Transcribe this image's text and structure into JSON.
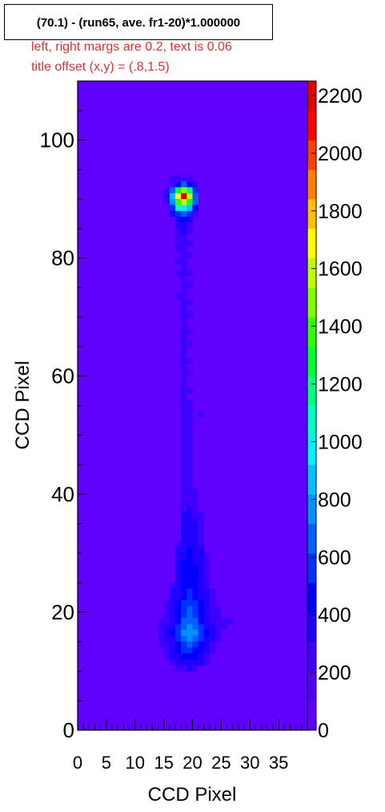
{
  "title": "(70.1) - (run65, ave. fr1-20)*1.000000",
  "annotations": [
    "left, right margs are 0.2, text is 0.06",
    "title offset (x,y) = (.8,1.5)"
  ],
  "chart_data": {
    "type": "heatmap",
    "title": "(70.1) - (run65, ave. fr1-20)*1.000000",
    "xlabel": "CCD Pixel",
    "ylabel": "CCD Pixel",
    "xlim": [
      0,
      40
    ],
    "ylim": [
      0,
      110
    ],
    "x_ticks": [
      0,
      5,
      10,
      15,
      20,
      25,
      30,
      35
    ],
    "y_ticks": [
      0,
      20,
      40,
      60,
      80,
      100
    ],
    "z_range": [
      0,
      2250
    ],
    "z_ticks": [
      0,
      200,
      400,
      600,
      800,
      1000,
      1200,
      1400,
      1600,
      1800,
      2000,
      2200
    ],
    "background_value": 100,
    "palette": [
      "#6000ff",
      "#5000ff",
      "#4000ff",
      "#2000ff",
      "#0000ff",
      "#0030ff",
      "#0060ff",
      "#0090ff",
      "#00c0ff",
      "#00f0ff",
      "#00ffc0",
      "#00ff80",
      "#00ff30",
      "#30ff00",
      "#80ff00",
      "#c0ff00",
      "#ffff00",
      "#ffc000",
      "#ff8000",
      "#ff4000",
      "#ff0000",
      "#e00000"
    ],
    "cells": [
      [
        16,
        93,
        250
      ],
      [
        17,
        93,
        250
      ],
      [
        18,
        93,
        300
      ],
      [
        19,
        93,
        250
      ],
      [
        16,
        92,
        300
      ],
      [
        17,
        92,
        500
      ],
      [
        18,
        92,
        650
      ],
      [
        19,
        92,
        500
      ],
      [
        20,
        92,
        300
      ],
      [
        15,
        91,
        300
      ],
      [
        16,
        91,
        700
      ],
      [
        17,
        91,
        1300
      ],
      [
        18,
        91,
        1500
      ],
      [
        19,
        91,
        1200
      ],
      [
        20,
        91,
        600
      ],
      [
        15,
        90,
        350
      ],
      [
        16,
        90,
        900
      ],
      [
        17,
        90,
        1700
      ],
      [
        18,
        90,
        2250
      ],
      [
        19,
        90,
        1600
      ],
      [
        20,
        90,
        700
      ],
      [
        15,
        89,
        300
      ],
      [
        16,
        89,
        800
      ],
      [
        17,
        89,
        1400
      ],
      [
        18,
        89,
        1600
      ],
      [
        19,
        89,
        1300
      ],
      [
        20,
        89,
        650
      ],
      [
        16,
        88,
        600
      ],
      [
        17,
        88,
        1100
      ],
      [
        18,
        88,
        1000
      ],
      [
        19,
        88,
        900
      ],
      [
        20,
        88,
        450
      ],
      [
        16,
        87,
        400
      ],
      [
        17,
        87,
        600
      ],
      [
        18,
        87,
        650
      ],
      [
        19,
        87,
        550
      ],
      [
        20,
        87,
        300
      ],
      [
        17,
        86,
        400
      ],
      [
        18,
        86,
        450
      ],
      [
        19,
        86,
        350
      ],
      [
        17,
        85,
        350
      ],
      [
        18,
        85,
        400
      ],
      [
        19,
        85,
        300
      ],
      [
        17,
        84,
        300
      ],
      [
        18,
        84,
        350
      ],
      [
        19,
        84,
        250
      ],
      [
        17,
        83,
        280
      ],
      [
        18,
        83,
        300
      ],
      [
        17,
        82,
        250
      ],
      [
        18,
        82,
        280
      ],
      [
        19,
        82,
        230
      ],
      [
        17,
        81,
        260
      ],
      [
        18,
        81,
        240
      ],
      [
        18,
        80,
        250
      ],
      [
        19,
        80,
        220
      ],
      [
        17,
        79,
        230
      ],
      [
        18,
        79,
        260
      ],
      [
        18,
        78,
        240
      ],
      [
        17,
        77,
        220
      ],
      [
        18,
        77,
        250
      ],
      [
        19,
        77,
        220
      ],
      [
        18,
        76,
        230
      ],
      [
        18,
        75,
        240
      ],
      [
        19,
        75,
        210
      ],
      [
        18,
        74,
        220
      ],
      [
        17,
        73,
        210
      ],
      [
        18,
        73,
        230
      ],
      [
        18,
        72,
        240
      ],
      [
        19,
        72,
        220
      ],
      [
        18,
        71,
        220
      ],
      [
        18,
        70,
        230
      ],
      [
        19,
        70,
        210
      ],
      [
        18,
        69,
        220
      ],
      [
        18,
        68,
        240
      ],
      [
        18,
        67,
        220
      ],
      [
        19,
        67,
        210
      ],
      [
        18,
        66,
        230
      ],
      [
        18,
        65,
        220
      ],
      [
        19,
        65,
        220
      ],
      [
        18,
        64,
        240
      ],
      [
        18,
        63,
        220
      ],
      [
        18,
        62,
        230
      ],
      [
        19,
        62,
        210
      ],
      [
        18,
        61,
        220
      ],
      [
        18,
        60,
        230
      ],
      [
        19,
        60,
        220
      ],
      [
        18,
        59,
        220
      ],
      [
        18,
        58,
        240
      ],
      [
        18,
        57,
        220
      ],
      [
        19,
        57,
        210
      ],
      [
        18,
        56,
        230
      ],
      [
        18,
        55,
        220
      ],
      [
        19,
        55,
        230
      ],
      [
        18,
        54,
        240
      ],
      [
        19,
        54,
        220
      ],
      [
        18,
        53,
        230
      ],
      [
        19,
        53,
        220
      ],
      [
        21,
        53,
        210
      ],
      [
        18,
        52,
        240
      ],
      [
        19,
        52,
        230
      ],
      [
        18,
        51,
        250
      ],
      [
        19,
        51,
        240
      ],
      [
        18,
        50,
        240
      ],
      [
        19,
        50,
        230
      ],
      [
        18,
        49,
        250
      ],
      [
        19,
        49,
        240
      ],
      [
        18,
        48,
        240
      ],
      [
        19,
        48,
        250
      ],
      [
        18,
        47,
        250
      ],
      [
        19,
        47,
        240
      ],
      [
        18,
        46,
        240
      ],
      [
        19,
        46,
        250
      ],
      [
        18,
        45,
        250
      ],
      [
        19,
        45,
        260
      ],
      [
        18,
        44,
        260
      ],
      [
        19,
        44,
        250
      ],
      [
        18,
        43,
        250
      ],
      [
        19,
        43,
        260
      ],
      [
        18,
        42,
        270
      ],
      [
        19,
        42,
        260
      ],
      [
        18,
        41,
        260
      ],
      [
        19,
        41,
        270
      ],
      [
        18,
        40,
        270
      ],
      [
        19,
        40,
        280
      ],
      [
        20,
        40,
        230
      ],
      [
        18,
        39,
        280
      ],
      [
        19,
        39,
        270
      ],
      [
        20,
        39,
        240
      ],
      [
        18,
        38,
        290
      ],
      [
        19,
        38,
        300
      ],
      [
        20,
        38,
        250
      ],
      [
        18,
        37,
        300
      ],
      [
        19,
        37,
        320
      ],
      [
        20,
        37,
        280
      ],
      [
        18,
        36,
        310
      ],
      [
        19,
        36,
        330
      ],
      [
        20,
        36,
        290
      ],
      [
        21,
        36,
        230
      ],
      [
        18,
        35,
        330
      ],
      [
        19,
        35,
        350
      ],
      [
        20,
        35,
        310
      ],
      [
        21,
        35,
        250
      ],
      [
        18,
        34,
        340
      ],
      [
        19,
        34,
        360
      ],
      [
        20,
        34,
        320
      ],
      [
        21,
        34,
        260
      ],
      [
        18,
        33,
        350
      ],
      [
        19,
        33,
        370
      ],
      [
        20,
        33,
        330
      ],
      [
        21,
        33,
        270
      ],
      [
        18,
        32,
        360
      ],
      [
        19,
        32,
        380
      ],
      [
        20,
        32,
        340
      ],
      [
        21,
        32,
        280
      ],
      [
        17,
        31,
        300
      ],
      [
        18,
        31,
        380
      ],
      [
        19,
        31,
        400
      ],
      [
        20,
        31,
        360
      ],
      [
        21,
        31,
        300
      ],
      [
        17,
        30,
        310
      ],
      [
        18,
        30,
        390
      ],
      [
        19,
        30,
        420
      ],
      [
        20,
        30,
        380
      ],
      [
        21,
        30,
        310
      ],
      [
        17,
        29,
        320
      ],
      [
        18,
        29,
        400
      ],
      [
        19,
        29,
        430
      ],
      [
        20,
        29,
        390
      ],
      [
        21,
        29,
        320
      ],
      [
        22,
        29,
        250
      ],
      [
        17,
        28,
        330
      ],
      [
        18,
        28,
        410
      ],
      [
        19,
        28,
        440
      ],
      [
        20,
        28,
        400
      ],
      [
        21,
        28,
        330
      ],
      [
        22,
        28,
        260
      ],
      [
        17,
        27,
        340
      ],
      [
        18,
        27,
        420
      ],
      [
        19,
        27,
        450
      ],
      [
        20,
        27,
        410
      ],
      [
        21,
        27,
        340
      ],
      [
        22,
        27,
        270
      ],
      [
        17,
        26,
        350
      ],
      [
        18,
        26,
        430
      ],
      [
        19,
        26,
        460
      ],
      [
        20,
        26,
        420
      ],
      [
        21,
        26,
        350
      ],
      [
        22,
        26,
        280
      ],
      [
        17,
        25,
        360
      ],
      [
        18,
        25,
        450
      ],
      [
        19,
        25,
        480
      ],
      [
        20,
        25,
        430
      ],
      [
        21,
        25,
        360
      ],
      [
        22,
        25,
        290
      ],
      [
        16,
        24,
        300
      ],
      [
        17,
        24,
        370
      ],
      [
        18,
        24,
        460
      ],
      [
        19,
        24,
        500
      ],
      [
        20,
        24,
        450
      ],
      [
        21,
        24,
        370
      ],
      [
        22,
        24,
        300
      ],
      [
        16,
        23,
        310
      ],
      [
        17,
        23,
        380
      ],
      [
        18,
        23,
        480
      ],
      [
        19,
        23,
        520
      ],
      [
        20,
        23,
        470
      ],
      [
        21,
        23,
        380
      ],
      [
        22,
        23,
        310
      ],
      [
        23,
        23,
        240
      ],
      [
        16,
        22,
        320
      ],
      [
        17,
        22,
        400
      ],
      [
        18,
        22,
        500
      ],
      [
        19,
        22,
        550
      ],
      [
        20,
        22,
        500
      ],
      [
        21,
        22,
        400
      ],
      [
        22,
        22,
        320
      ],
      [
        23,
        22,
        250
      ],
      [
        15,
        21,
        260
      ],
      [
        16,
        21,
        330
      ],
      [
        17,
        21,
        420
      ],
      [
        18,
        21,
        520
      ],
      [
        19,
        21,
        580
      ],
      [
        20,
        21,
        530
      ],
      [
        21,
        21,
        420
      ],
      [
        22,
        21,
        330
      ],
      [
        23,
        21,
        260
      ],
      [
        15,
        20,
        270
      ],
      [
        16,
        20,
        350
      ],
      [
        17,
        20,
        450
      ],
      [
        18,
        20,
        560
      ],
      [
        19,
        20,
        620
      ],
      [
        20,
        20,
        560
      ],
      [
        21,
        20,
        440
      ],
      [
        22,
        20,
        340
      ],
      [
        23,
        20,
        270
      ],
      [
        24,
        20,
        230
      ],
      [
        15,
        19,
        280
      ],
      [
        16,
        19,
        360
      ],
      [
        17,
        19,
        480
      ],
      [
        18,
        19,
        600
      ],
      [
        19,
        19,
        660
      ],
      [
        20,
        19,
        600
      ],
      [
        21,
        19,
        470
      ],
      [
        22,
        19,
        360
      ],
      [
        23,
        19,
        280
      ],
      [
        24,
        19,
        240
      ],
      [
        14,
        18,
        240
      ],
      [
        15,
        18,
        300
      ],
      [
        16,
        18,
        380
      ],
      [
        17,
        18,
        500
      ],
      [
        18,
        18,
        640
      ],
      [
        19,
        18,
        700
      ],
      [
        20,
        18,
        640
      ],
      [
        21,
        18,
        500
      ],
      [
        22,
        18,
        380
      ],
      [
        23,
        18,
        300
      ],
      [
        24,
        18,
        260
      ],
      [
        25,
        18,
        230
      ],
      [
        26,
        18,
        220
      ],
      [
        14,
        17,
        250
      ],
      [
        15,
        17,
        310
      ],
      [
        16,
        17,
        400
      ],
      [
        17,
        17,
        520
      ],
      [
        18,
        17,
        700
      ],
      [
        19,
        17,
        760
      ],
      [
        20,
        17,
        680
      ],
      [
        21,
        17,
        520
      ],
      [
        22,
        17,
        400
      ],
      [
        23,
        17,
        310
      ],
      [
        24,
        17,
        260
      ],
      [
        25,
        17,
        230
      ],
      [
        14,
        16,
        260
      ],
      [
        15,
        16,
        320
      ],
      [
        16,
        16,
        420
      ],
      [
        17,
        16,
        540
      ],
      [
        18,
        16,
        740
      ],
      [
        19,
        16,
        800
      ],
      [
        20,
        16,
        720
      ],
      [
        21,
        16,
        540
      ],
      [
        22,
        16,
        410
      ],
      [
        23,
        16,
        320
      ],
      [
        24,
        16,
        270
      ],
      [
        14,
        15,
        250
      ],
      [
        15,
        15,
        310
      ],
      [
        16,
        15,
        400
      ],
      [
        17,
        15,
        520
      ],
      [
        18,
        15,
        700
      ],
      [
        19,
        15,
        760
      ],
      [
        20,
        15,
        680
      ],
      [
        21,
        15,
        520
      ],
      [
        22,
        15,
        400
      ],
      [
        23,
        15,
        310
      ],
      [
        24,
        15,
        260
      ],
      [
        14,
        14,
        240
      ],
      [
        15,
        14,
        300
      ],
      [
        16,
        14,
        380
      ],
      [
        17,
        14,
        480
      ],
      [
        18,
        14,
        600
      ],
      [
        19,
        14,
        640
      ],
      [
        20,
        14,
        580
      ],
      [
        21,
        14,
        460
      ],
      [
        22,
        14,
        360
      ],
      [
        23,
        14,
        290
      ],
      [
        15,
        13,
        280
      ],
      [
        16,
        13,
        350
      ],
      [
        17,
        13,
        440
      ],
      [
        18,
        13,
        520
      ],
      [
        19,
        13,
        560
      ],
      [
        20,
        13,
        500
      ],
      [
        21,
        13,
        410
      ],
      [
        22,
        13,
        330
      ],
      [
        23,
        13,
        270
      ],
      [
        15,
        12,
        260
      ],
      [
        16,
        12,
        320
      ],
      [
        17,
        12,
        400
      ],
      [
        18,
        12,
        460
      ],
      [
        19,
        12,
        480
      ],
      [
        20,
        12,
        440
      ],
      [
        21,
        12,
        370
      ],
      [
        22,
        12,
        300
      ],
      [
        16,
        11,
        280
      ],
      [
        17,
        11,
        340
      ],
      [
        18,
        11,
        380
      ],
      [
        19,
        11,
        400
      ],
      [
        20,
        11,
        360
      ],
      [
        21,
        11,
        310
      ],
      [
        22,
        11,
        260
      ],
      [
        17,
        10,
        280
      ],
      [
        18,
        10,
        300
      ],
      [
        19,
        10,
        320
      ],
      [
        20,
        10,
        290
      ]
    ]
  }
}
